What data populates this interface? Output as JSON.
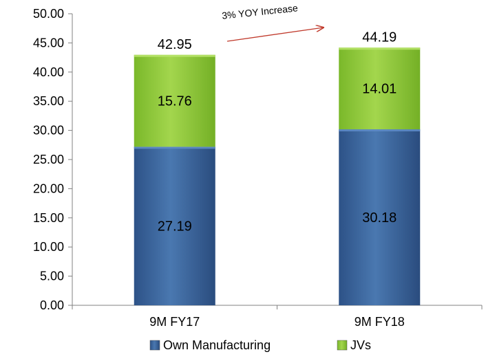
{
  "chart_data": {
    "type": "bar",
    "stacked": true,
    "categories": [
      "9M FY17",
      "9M FY18"
    ],
    "series": [
      {
        "name": "Own Manufacturing",
        "values": [
          27.19,
          30.18
        ],
        "color": "#3b67a0"
      },
      {
        "name": "JVs",
        "values": [
          15.76,
          14.01
        ],
        "color": "#8fc93a"
      }
    ],
    "totals": [
      42.95,
      44.19
    ],
    "ylim": [
      0,
      50
    ],
    "yticks": [
      "0.00",
      "5.00",
      "10.00",
      "15.00",
      "20.00",
      "25.00",
      "30.00",
      "35.00",
      "40.00",
      "45.00",
      "50.00"
    ],
    "ytick_step": 5,
    "grid": false,
    "legend": "bottom",
    "annotation": {
      "text": "3% YOY Increase",
      "arrow_color": "#c0392b"
    }
  }
}
